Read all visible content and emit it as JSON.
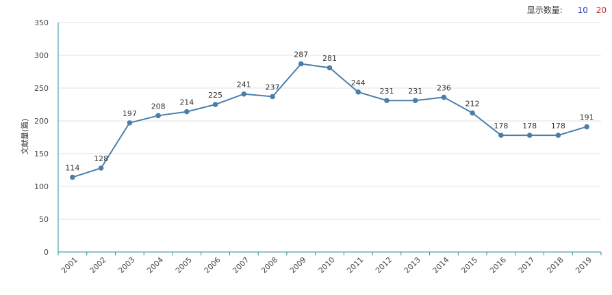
{
  "controls": {
    "label": "显示数量:",
    "options": [
      {
        "label": "10",
        "color": "#2233cc"
      },
      {
        "label": "20",
        "color": "#cc2222"
      }
    ]
  },
  "chart_data": {
    "type": "line",
    "categories": [
      "2001",
      "2002",
      "2003",
      "2004",
      "2005",
      "2006",
      "2007",
      "2008",
      "2009",
      "2010",
      "2011",
      "2012",
      "2013",
      "2014",
      "2015",
      "2016",
      "2017",
      "2018",
      "2019"
    ],
    "series": [
      {
        "values": [
          114,
          128,
          197,
          208,
          214,
          225,
          241,
          237,
          287,
          281,
          244,
          231,
          231,
          236,
          212,
          178,
          178,
          178,
          191
        ]
      }
    ],
    "ylabel": "文献量(篇)",
    "xlabel": "",
    "ylim": [
      0,
      350
    ],
    "yticks": [
      0,
      50,
      100,
      150,
      200,
      250,
      300,
      350
    ],
    "grid": true,
    "line_color": "#4a7fad",
    "axis_color": "#2a8a9a"
  }
}
